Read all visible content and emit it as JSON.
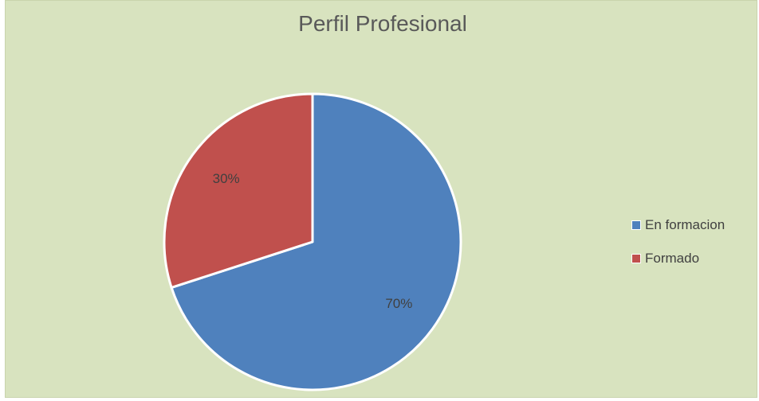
{
  "chart_data": {
    "type": "pie",
    "title": "Perfil Profesional",
    "categories": [
      "En formacion",
      "Formado"
    ],
    "values": [
      70,
      30
    ],
    "data_labels": [
      "70%",
      "30%"
    ],
    "colors": [
      "#4f81bd",
      "#c0504d"
    ],
    "legend_position": "right"
  }
}
